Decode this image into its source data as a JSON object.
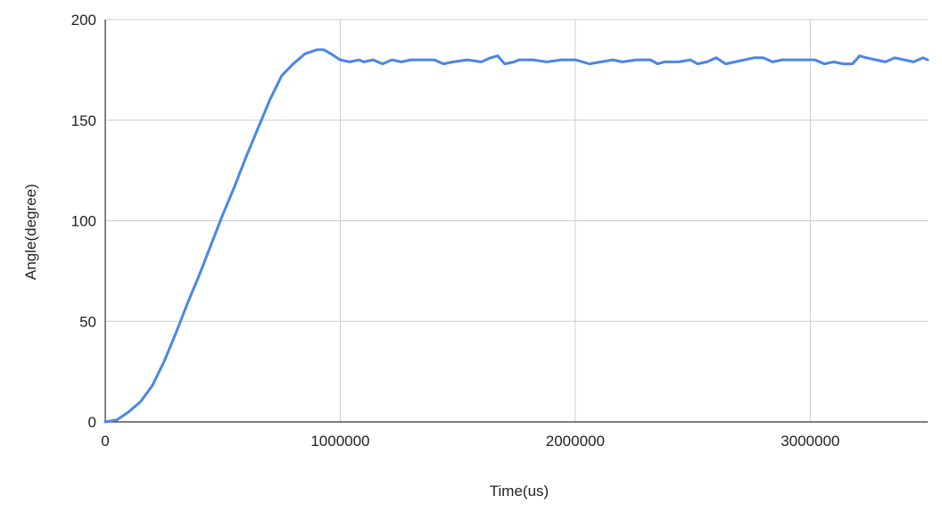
{
  "chart_data": {
    "type": "line",
    "title": "",
    "xlabel": "Time(us)",
    "ylabel": "Angle(degree)",
    "xlim": [
      0,
      3500000
    ],
    "ylim": [
      0,
      200
    ],
    "x_ticks": [
      0,
      1000000,
      2000000,
      3000000
    ],
    "y_ticks": [
      0,
      50,
      100,
      150,
      200
    ],
    "grid": true,
    "legend": "none",
    "colors": {
      "line": "#4a86e8",
      "grid": "#cccccc",
      "axis": "#333333"
    },
    "series": [
      {
        "x": [
          0,
          50000,
          100000,
          150000,
          200000,
          250000,
          300000,
          350000,
          400000,
          450000,
          500000,
          550000,
          600000,
          650000,
          700000,
          750000,
          800000,
          850000,
          900000,
          930000,
          960000,
          1000000,
          1040000,
          1080000,
          1100000,
          1140000,
          1180000,
          1220000,
          1260000,
          1300000,
          1360000,
          1400000,
          1440000,
          1480000,
          1540000,
          1600000,
          1640000,
          1670000,
          1700000,
          1740000,
          1760000,
          1820000,
          1880000,
          1940000,
          2000000,
          2060000,
          2110000,
          2160000,
          2200000,
          2260000,
          2320000,
          2350000,
          2380000,
          2440000,
          2490000,
          2520000,
          2560000,
          2600000,
          2640000,
          2680000,
          2720000,
          2760000,
          2800000,
          2840000,
          2880000,
          2940000,
          2980000,
          3020000,
          3060000,
          3100000,
          3140000,
          3180000,
          3210000,
          3240000,
          3280000,
          3320000,
          3360000,
          3400000,
          3440000,
          3480000,
          3500000
        ],
        "y": [
          0,
          1,
          5,
          10,
          18,
          30,
          44,
          59,
          73,
          88,
          103,
          117,
          132,
          146,
          160,
          172,
          178,
          183,
          185,
          185,
          183,
          180,
          179,
          180,
          179,
          180,
          178,
          180,
          179,
          180,
          180,
          180,
          178,
          179,
          180,
          179,
          181,
          182,
          178,
          179,
          180,
          180,
          179,
          180,
          180,
          178,
          179,
          180,
          179,
          180,
          180,
          178,
          179,
          179,
          180,
          178,
          179,
          181,
          178,
          179,
          180,
          181,
          181,
          179,
          180,
          180,
          180,
          180,
          178,
          179,
          178,
          178,
          182,
          181,
          180,
          179,
          181,
          180,
          179,
          181,
          180
        ]
      }
    ]
  }
}
